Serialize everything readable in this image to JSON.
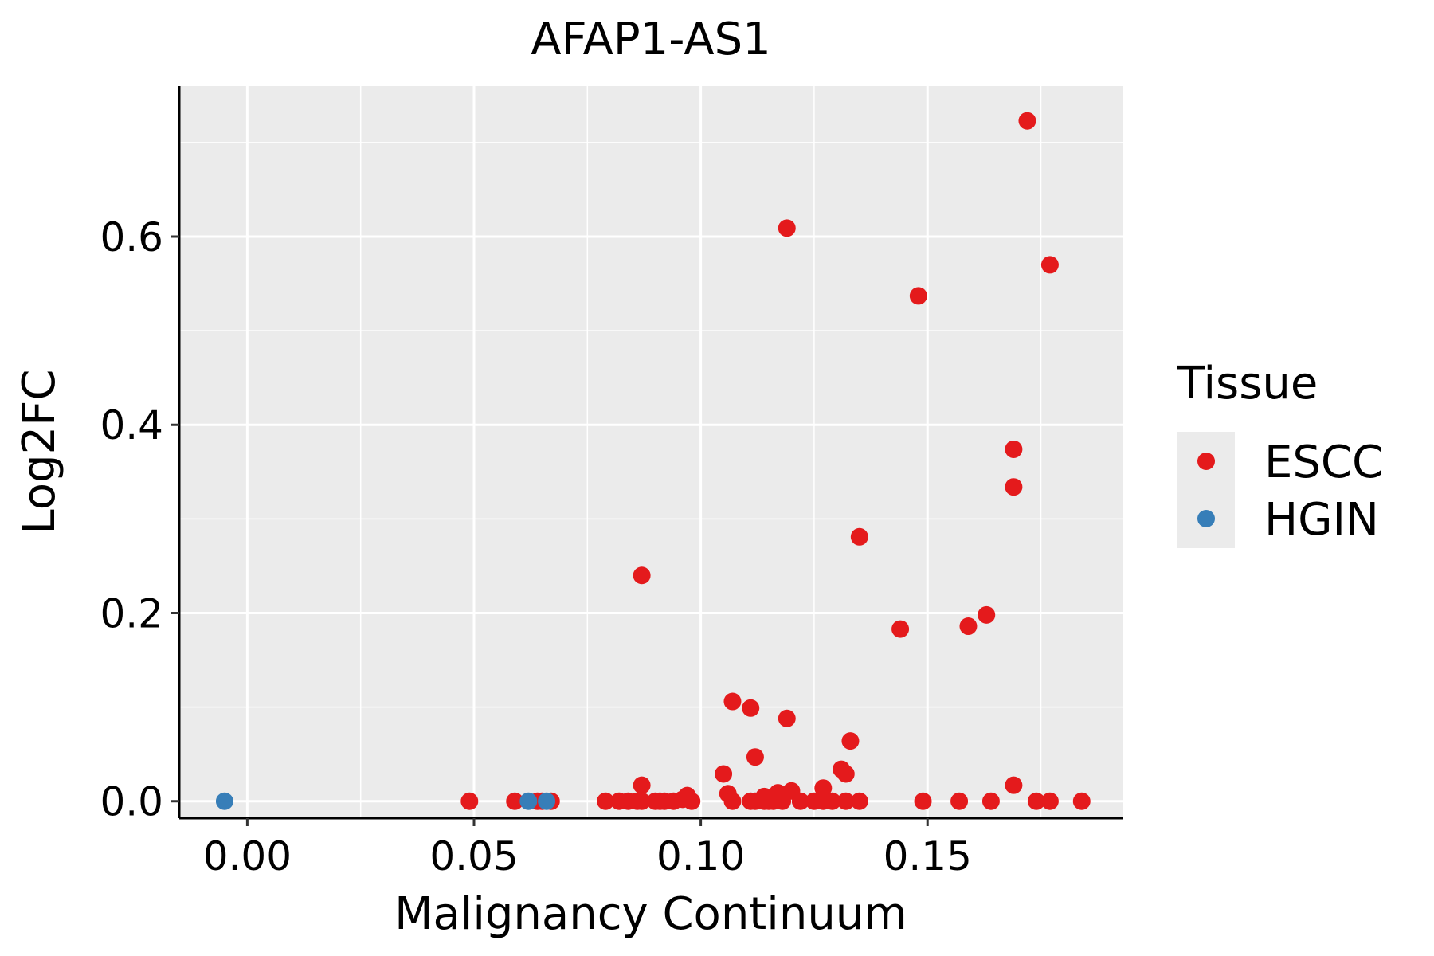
{
  "chart_data": {
    "type": "scatter",
    "title": "AFAP1-AS1",
    "xlabel": "Malignancy Continuum",
    "ylabel": "Log2FC",
    "xlim": [
      -0.015,
      0.193
    ],
    "ylim": [
      -0.018,
      0.76
    ],
    "xticks": [
      0.0,
      0.05,
      0.1,
      0.15
    ],
    "xtick_labels": [
      "0.00",
      "0.05",
      "0.10",
      "0.15"
    ],
    "yticks": [
      0.0,
      0.2,
      0.4,
      0.6
    ],
    "ytick_labels": [
      "0.0",
      "0.2",
      "0.4",
      "0.6"
    ],
    "grid": true,
    "legend": {
      "title": "Tissue",
      "position": "right"
    },
    "series": [
      {
        "name": "ESCC",
        "color": "#e41a1c",
        "points": [
          [
            0.172,
            0.723
          ],
          [
            0.119,
            0.609
          ],
          [
            0.177,
            0.57
          ],
          [
            0.148,
            0.537
          ],
          [
            0.169,
            0.374
          ],
          [
            0.169,
            0.334
          ],
          [
            0.135,
            0.281
          ],
          [
            0.087,
            0.24
          ],
          [
            0.163,
            0.198
          ],
          [
            0.159,
            0.186
          ],
          [
            0.144,
            0.183
          ],
          [
            0.107,
            0.106
          ],
          [
            0.111,
            0.099
          ],
          [
            0.119,
            0.088
          ],
          [
            0.133,
            0.064
          ],
          [
            0.112,
            0.047
          ],
          [
            0.131,
            0.034
          ],
          [
            0.132,
            0.029
          ],
          [
            0.105,
            0.029
          ],
          [
            0.087,
            0.017
          ],
          [
            0.169,
            0.017
          ],
          [
            0.127,
            0.014
          ],
          [
            0.12,
            0.011
          ],
          [
            0.117,
            0.009
          ],
          [
            0.106,
            0.008
          ],
          [
            0.097,
            0.006
          ],
          [
            0.114,
            0.005
          ],
          [
            0.096,
            0.002
          ],
          [
            0.049,
            0.0
          ],
          [
            0.059,
            0.0
          ],
          [
            0.064,
            0.0
          ],
          [
            0.065,
            0.0
          ],
          [
            0.067,
            0.0
          ],
          [
            0.079,
            0.0
          ],
          [
            0.082,
            0.0
          ],
          [
            0.084,
            0.0
          ],
          [
            0.086,
            0.0
          ],
          [
            0.087,
            0.0
          ],
          [
            0.09,
            0.0
          ],
          [
            0.091,
            0.0
          ],
          [
            0.092,
            0.0
          ],
          [
            0.094,
            0.0
          ],
          [
            0.098,
            0.0
          ],
          [
            0.107,
            0.0
          ],
          [
            0.111,
            0.0
          ],
          [
            0.112,
            0.0
          ],
          [
            0.114,
            0.0
          ],
          [
            0.115,
            0.0
          ],
          [
            0.116,
            0.0
          ],
          [
            0.118,
            0.0
          ],
          [
            0.122,
            0.0
          ],
          [
            0.125,
            0.0
          ],
          [
            0.127,
            0.0
          ],
          [
            0.129,
            0.0
          ],
          [
            0.132,
            0.0
          ],
          [
            0.135,
            0.0
          ],
          [
            0.149,
            0.0
          ],
          [
            0.157,
            0.0
          ],
          [
            0.164,
            0.0
          ],
          [
            0.174,
            0.0
          ],
          [
            0.177,
            0.0
          ],
          [
            0.184,
            0.0
          ]
        ]
      },
      {
        "name": "HGIN",
        "color": "#377eb8",
        "points": [
          [
            -0.005,
            0.0
          ],
          [
            0.062,
            0.0
          ],
          [
            0.066,
            0.0
          ]
        ]
      }
    ]
  }
}
